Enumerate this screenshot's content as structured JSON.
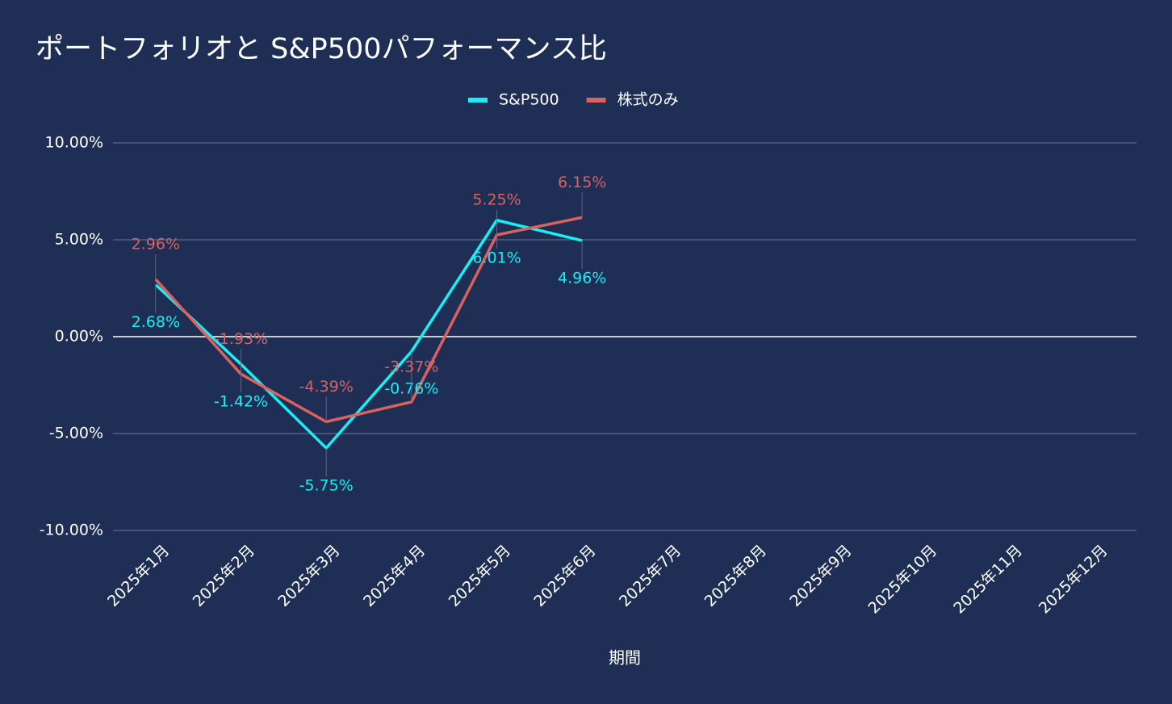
{
  "chart_data": {
    "type": "line",
    "title": "ポートフォリオと S&P500パフォーマンス比",
    "x_label": "期間",
    "legend": "top",
    "grid": true,
    "categories": [
      "2025年1月",
      "2025年2月",
      "2025年3月",
      "2025年4月",
      "2025年5月",
      "2025年6月",
      "2025年7月",
      "2025年8月",
      "2025年9月",
      "2025年10月",
      "2025年11月",
      "2025年12月"
    ],
    "series": [
      {
        "name": "S&P500",
        "color": "#19eef4",
        "values": [
          2.68,
          -1.42,
          -5.75,
          -0.76,
          6.01,
          4.96,
          null,
          null,
          null,
          null,
          null,
          null
        ],
        "value_labels": [
          "2.68%",
          "-1.42%",
          "-5.75%",
          "-0.76%",
          "6.01%",
          "4.96%",
          null,
          null,
          null,
          null,
          null,
          null
        ]
      },
      {
        "name": "株式のみ",
        "color": "#d9625f",
        "values": [
          2.96,
          -1.93,
          -4.39,
          -3.37,
          5.25,
          6.15,
          null,
          null,
          null,
          null,
          null,
          null
        ],
        "value_labels": [
          "2.96%",
          "-1.93%",
          "-4.39%",
          "-3.37%",
          "5.25%",
          "6.15%",
          null,
          null,
          null,
          null,
          null,
          null
        ]
      }
    ],
    "ylim": [
      -10,
      10
    ],
    "yticks": [
      {
        "value": -10,
        "label": "-10.00%"
      },
      {
        "value": -5,
        "label": "-5.00%"
      },
      {
        "value": 0,
        "label": "0.00%"
      },
      {
        "value": 5,
        "label": "5.00%"
      },
      {
        "value": 10,
        "label": "10.00%"
      }
    ]
  }
}
